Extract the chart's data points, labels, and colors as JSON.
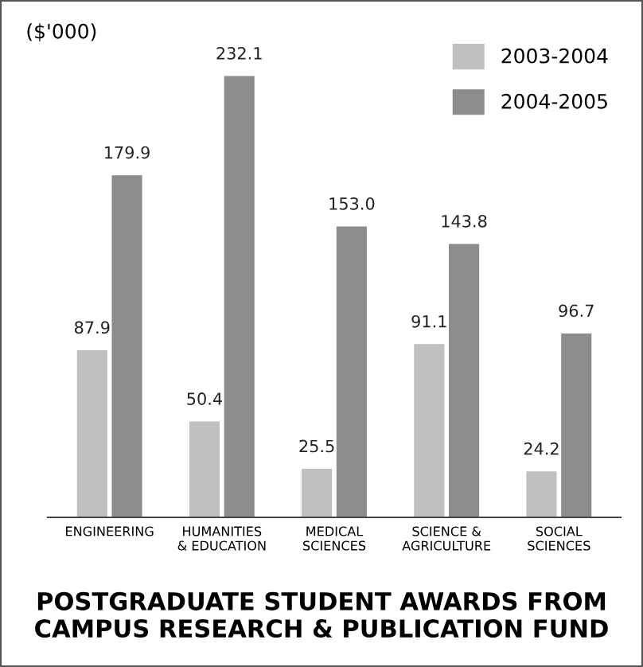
{
  "chart_data": {
    "type": "bar",
    "title": "POSTGRADUATE STUDENT AWARDS FROM\nCAMPUS RESEARCH & PUBLICATION FUND",
    "ylabel": "($'000)",
    "categories": [
      "ENGINEERING",
      "HUMANITIES\n& EDUCATION",
      "MEDICAL\nSCIENCES",
      "SCIENCE &\nAGRICULTURE",
      "SOCIAL\nSCIENCES"
    ],
    "series": [
      {
        "name": "2003-2004",
        "color": "#c0c0c0",
        "values": [
          87.9,
          50.4,
          25.5,
          91.1,
          24.2
        ],
        "value_labels": [
          "87.9",
          "50.4",
          "25.5",
          "91.1",
          "24.2"
        ]
      },
      {
        "name": "2004-2005",
        "color": "#8c8c8c",
        "values": [
          179.9,
          232.1,
          153.0,
          143.8,
          96.7
        ],
        "value_labels": [
          "179.9",
          "232.1",
          "153.0",
          "143.8",
          "96.7"
        ]
      }
    ],
    "legend": "top right",
    "grid": false
  }
}
